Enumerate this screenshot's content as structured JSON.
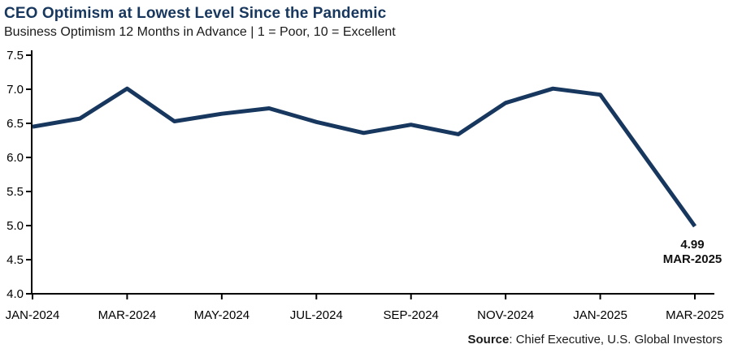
{
  "source": {
    "label": "Source",
    "text": ": Chief Executive, U.S. Global Investors"
  },
  "colors": {
    "line": "#17375E",
    "title": "#17375E",
    "axis": "#000000",
    "label_text": "#000000"
  },
  "chart_data": {
    "type": "line",
    "title": "CEO Optimism at Lowest Level Since the Pandemic",
    "subtitle": "Business Optimism 12 Months in Advance | 1 = Poor, 10 = Excellent",
    "x": [
      "JAN-2024",
      "FEB-2024",
      "MAR-2024",
      "APR-2024",
      "MAY-2024",
      "JUN-2024",
      "JUL-2024",
      "AUG-2024",
      "SEP-2024",
      "OCT-2024",
      "NOV-2024",
      "DEC-2024",
      "JAN-2025",
      "FEB-2025",
      "MAR-2025"
    ],
    "values": [
      6.45,
      6.57,
      7.01,
      6.53,
      6.64,
      6.72,
      6.52,
      6.36,
      6.48,
      6.34,
      6.8,
      7.01,
      6.92,
      null,
      4.99
    ],
    "x_tick_labels": [
      "JAN-2024",
      "MAR-2024",
      "MAY-2024",
      "JUL-2024",
      "SEP-2024",
      "NOV-2024",
      "JAN-2025",
      "MAR-2025"
    ],
    "y_tick_labels": [
      "4.0",
      "4.5",
      "5.0",
      "5.5",
      "6.0",
      "6.5",
      "7.0",
      "7.5"
    ],
    "ylim": [
      4.0,
      7.5
    ],
    "y_tick_step": 0.5,
    "xlabel": "",
    "ylabel": "",
    "grid": false,
    "legend": null,
    "annotation": {
      "value_label": "4.99",
      "date_label": "MAR-2025"
    }
  }
}
